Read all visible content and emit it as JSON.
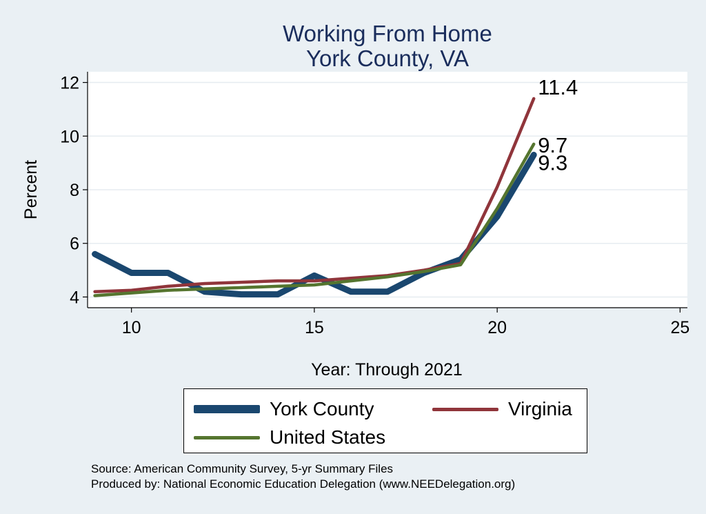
{
  "chart_data": {
    "type": "line",
    "title": "Working From Home",
    "subtitle": "York County, VA",
    "xlabel": "Year: Through 2021",
    "ylabel": "Percent",
    "xlim": [
      8.8,
      25.2
    ],
    "ylim": [
      3.6,
      12.4
    ],
    "x_ticks": [
      10,
      15,
      20,
      25
    ],
    "y_ticks": [
      4,
      6,
      8,
      10,
      12
    ],
    "grid": true,
    "legend_position": "bottom",
    "series": [
      {
        "name": "York County",
        "color": "#1a476f",
        "x": [
          9,
          10,
          11,
          12,
          13,
          14,
          15,
          16,
          17,
          18,
          19,
          20,
          21
        ],
        "y": [
          5.6,
          4.9,
          4.9,
          4.2,
          4.1,
          4.1,
          4.8,
          4.2,
          4.2,
          4.9,
          5.4,
          7.0,
          9.3
        ],
        "end_label": "9.3"
      },
      {
        "name": "Virginia",
        "color": "#90353b",
        "x": [
          9,
          10,
          11,
          12,
          13,
          14,
          15,
          16,
          17,
          18,
          19,
          20,
          21
        ],
        "y": [
          4.2,
          4.25,
          4.4,
          4.5,
          4.55,
          4.6,
          4.6,
          4.7,
          4.8,
          5.0,
          5.25,
          8.1,
          11.4
        ],
        "end_label": "11.4"
      },
      {
        "name": "United States",
        "color": "#55752f",
        "x": [
          9,
          10,
          11,
          12,
          13,
          14,
          15,
          16,
          17,
          18,
          19,
          20,
          21
        ],
        "y": [
          4.05,
          4.15,
          4.25,
          4.3,
          4.35,
          4.4,
          4.45,
          4.6,
          4.75,
          4.95,
          5.2,
          7.3,
          9.7
        ],
        "end_label": "9.7"
      }
    ]
  },
  "source_line1": "Source: American Community Survey, 5-yr Summary Files",
  "source_line2": "Produced by: National Economic Education Delegation (www.NEEDelegation.org)"
}
